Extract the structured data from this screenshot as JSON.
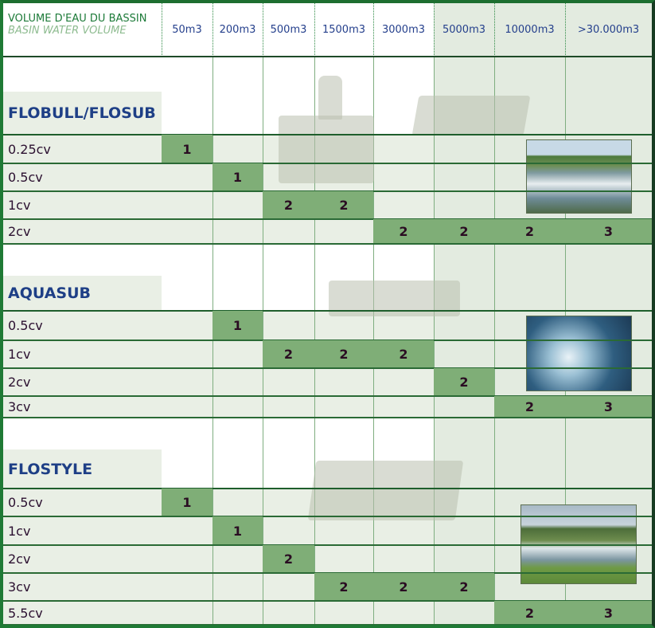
{
  "header": {
    "title_fr": "VOLUME D'EAU DU BASSIN",
    "title_en": "BASIN WATER VOLUME",
    "columns": [
      "50m3",
      "200m3",
      "500m3",
      "1500m3",
      "3000m3",
      "5000m3",
      "10000m3",
      ">30.000m3"
    ]
  },
  "colors": {
    "border": "#1f7a35",
    "cell": "#7fae77",
    "light": "#e9efe5",
    "title": "#1e3f86"
  },
  "sections": [
    {
      "name": "FLOBULL/FLOSUB",
      "rows": [
        {
          "label": "0.25cv",
          "cells": {
            "0": "1"
          }
        },
        {
          "label": "0.5cv",
          "cells": {
            "1": "1"
          }
        },
        {
          "label": "1cv",
          "cells": {
            "2": "2",
            "3": "2"
          }
        },
        {
          "label": "2cv",
          "cells": {
            "4": "2",
            "5": "2",
            "6": "2",
            "7": "3"
          }
        }
      ]
    },
    {
      "name": "AQUASUB",
      "rows": [
        {
          "label": "0.5cv",
          "cells": {
            "1": "1"
          }
        },
        {
          "label": "1cv",
          "cells": {
            "2": "2",
            "3": "2",
            "4": "2"
          }
        },
        {
          "label": "2cv",
          "cells": {
            "5": "2"
          }
        },
        {
          "label": "3cv",
          "cells": {
            "6": "2",
            "7": "3"
          }
        }
      ]
    },
    {
      "name": "FLOSTYLE",
      "rows": [
        {
          "label": "0.5cv",
          "cells": {
            "0": "1"
          }
        },
        {
          "label": "1cv",
          "cells": {
            "1": "1"
          }
        },
        {
          "label": "2cv",
          "cells": {
            "2": "2"
          }
        },
        {
          "label": "3cv",
          "cells": {
            "3": "2",
            "4": "2",
            "5": "2"
          }
        },
        {
          "label": "5.5cv",
          "cells": {
            "6": "2",
            "7": "3"
          }
        }
      ]
    }
  ]
}
